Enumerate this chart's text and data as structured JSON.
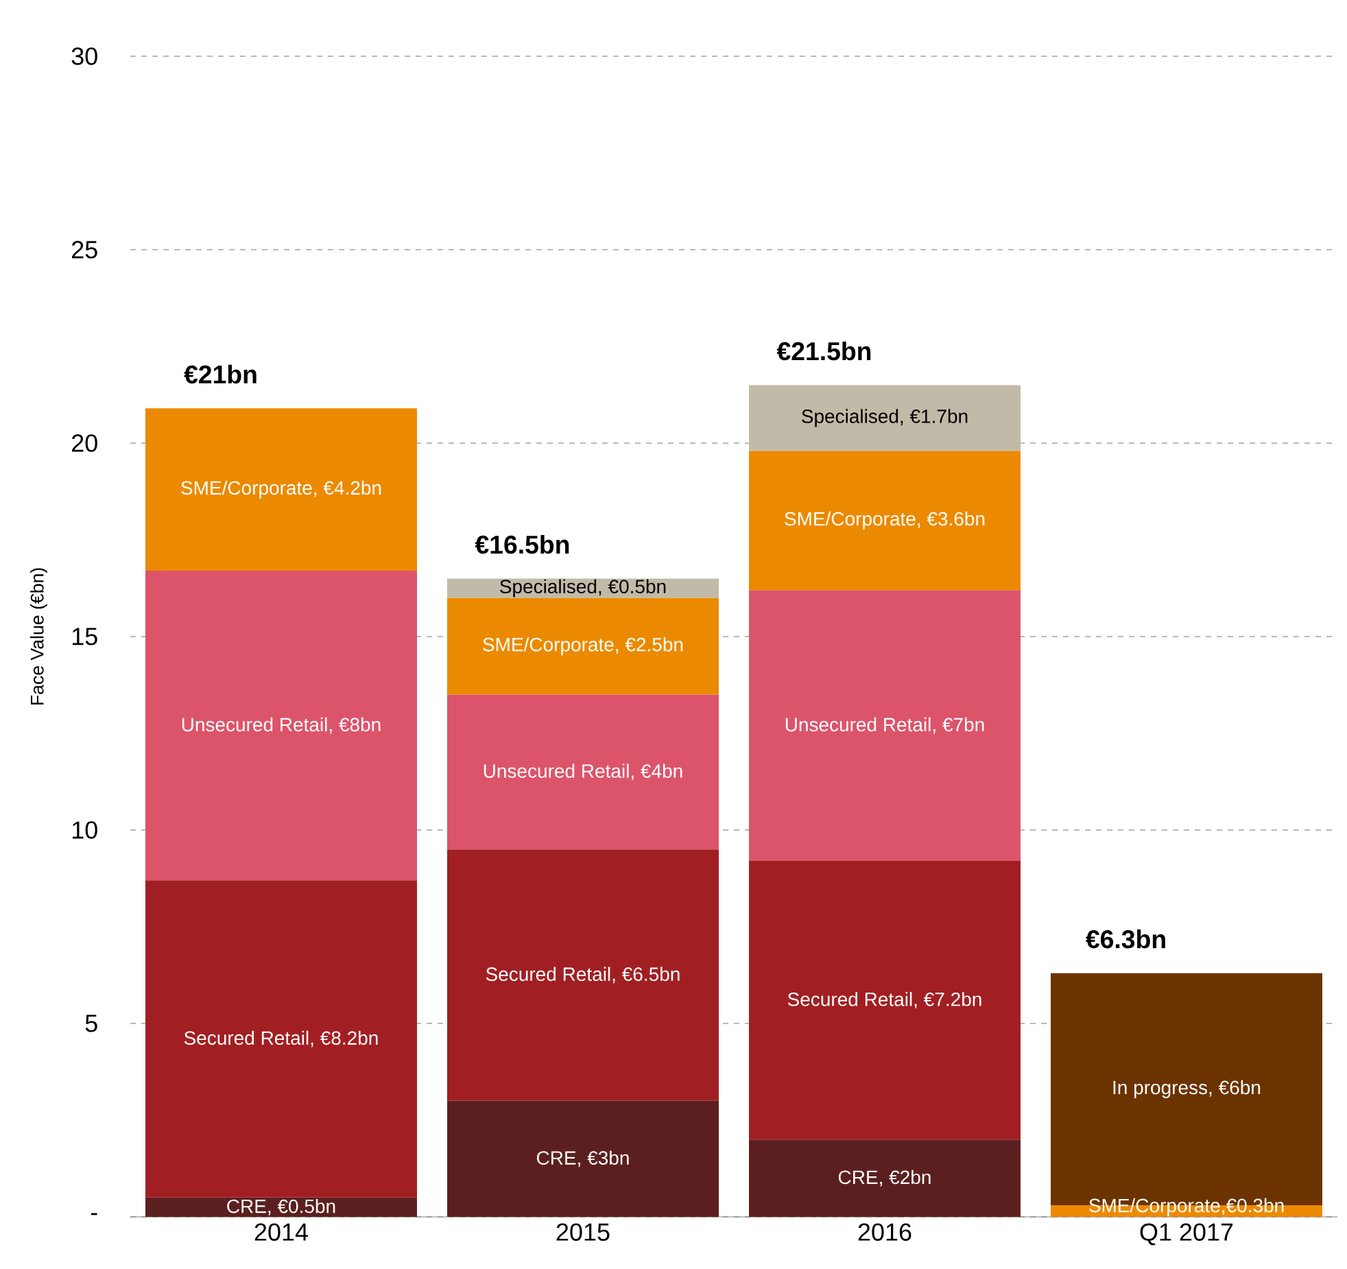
{
  "chart_data": {
    "type": "bar",
    "stacked": true,
    "ylabel": "Face Value (€bn)",
    "categories": [
      "2014",
      "2015",
      "2016",
      "Q1 2017"
    ],
    "series": [
      {
        "color": "#5c1f1f",
        "values": [
          0.5,
          3,
          2,
          null
        ],
        "value_labels": [
          "CRE, €0.5bn",
          "CRE, €3bn",
          "CRE, €2bn",
          null
        ]
      },
      {
        "color": "#a11f22",
        "values": [
          8.2,
          6.5,
          7.2,
          null
        ],
        "value_labels": [
          "Secured Retail, €8.2bn",
          "Secured Retail, €6.5bn",
          "Secured Retail, €7.2bn",
          null
        ]
      },
      {
        "color": "#dc546a",
        "values": [
          8,
          4,
          7,
          null
        ],
        "value_labels": [
          "Unsecured Retail, €8bn",
          "Unsecured Retail, €4bn",
          "Unsecured Retail, €7bn",
          null
        ]
      },
      {
        "color": "#eb8a00",
        "values": [
          4.2,
          2.5,
          3.6,
          0.3
        ],
        "value_labels": [
          "SME/Corporate, €4.2bn",
          "SME/Corporate, €2.5bn",
          "SME/Corporate, €3.6bn",
          "SME/Corporate,€0.3bn"
        ]
      },
      {
        "color": "#c2baa8",
        "values": [
          null,
          0.5,
          1.7,
          null
        ],
        "value_labels": [
          null,
          "Specialised, €0.5bn",
          "Specialised, €1.7bn",
          null
        ]
      },
      {
        "color": "#6b3300",
        "values": [
          null,
          null,
          null,
          6
        ],
        "value_labels": [
          null,
          null,
          null,
          "In progress, €6bn"
        ]
      }
    ],
    "totals": [
      "€21bn",
      "€16.5bn",
      "€21.5bn",
      "€6.3bn"
    ],
    "ylim": [
      0,
      30
    ],
    "yticks": [
      {
        "value": 0,
        "label": "-"
      },
      5,
      10,
      15,
      20,
      25,
      30
    ],
    "grid": "y"
  }
}
